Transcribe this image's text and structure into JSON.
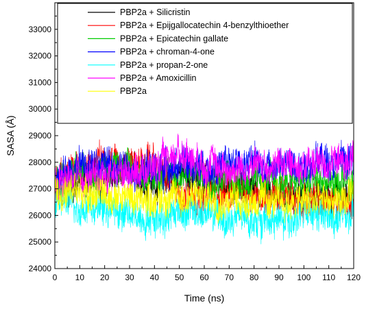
{
  "chart_data": {
    "type": "line",
    "title": "",
    "xlabel": "Time (ns)",
    "ylabel": "SASA (Å)",
    "xlim": [
      0,
      120
    ],
    "ylim": [
      24000,
      34000
    ],
    "xticks": [
      0,
      10,
      20,
      30,
      40,
      50,
      60,
      70,
      80,
      90,
      100,
      110,
      120
    ],
    "yticks": [
      24000,
      25000,
      26000,
      27000,
      28000,
      29000,
      30000,
      31000,
      32000,
      33000
    ],
    "grid": false,
    "legend_position": "top-right",
    "series": [
      {
        "name": "PBP2a + Silicristin",
        "color": "#000000",
        "x": [
          0,
          10,
          20,
          30,
          40,
          50,
          60,
          70,
          80,
          90,
          100,
          110,
          120
        ],
        "y": [
          26600,
          27300,
          27400,
          27600,
          27200,
          27500,
          27300,
          27100,
          27000,
          26900,
          26700,
          26600,
          26500
        ]
      },
      {
        "name": "PBP2a + Epijgallocatechin 4-benzylthioether",
        "color": "#ff0000",
        "x": [
          0,
          10,
          20,
          30,
          40,
          50,
          60,
          70,
          80,
          90,
          100,
          110,
          120
        ],
        "y": [
          27200,
          27700,
          28100,
          28000,
          27900,
          26800,
          26700,
          26900,
          26800,
          26700,
          26600,
          26500,
          26500
        ]
      },
      {
        "name": "PBP2a + Epicatechin gallate",
        "color": "#00cc00",
        "x": [
          0,
          10,
          20,
          30,
          40,
          50,
          60,
          70,
          80,
          90,
          100,
          110,
          120
        ],
        "y": [
          27300,
          27600,
          27800,
          27700,
          27500,
          27600,
          27500,
          27400,
          27300,
          27300,
          27200,
          27200,
          27100
        ]
      },
      {
        "name": "PBP2a + chroman-4-one",
        "color": "#0000ff",
        "x": [
          0,
          10,
          20,
          30,
          40,
          50,
          60,
          70,
          80,
          90,
          100,
          110,
          120
        ],
        "y": [
          27500,
          27900,
          27900,
          27800,
          27700,
          27900,
          27800,
          27900,
          28000,
          27900,
          28000,
          28100,
          28000
        ]
      },
      {
        "name": "PBP2a + propan-2-one",
        "color": "#00ffff",
        "x": [
          0,
          10,
          20,
          30,
          40,
          50,
          60,
          70,
          80,
          90,
          100,
          110,
          120
        ],
        "y": [
          26600,
          26400,
          26300,
          26000,
          25900,
          26200,
          26100,
          25800,
          25900,
          25800,
          26000,
          25900,
          25900
        ]
      },
      {
        "name": "PBP2a + Amoxicillin",
        "color": "#ff00ff",
        "x": [
          0,
          10,
          20,
          30,
          40,
          50,
          60,
          70,
          80,
          90,
          100,
          110,
          120
        ],
        "y": [
          27200,
          27400,
          27500,
          27700,
          27800,
          28400,
          28000,
          27700,
          27800,
          27900,
          27900,
          28000,
          28000
        ]
      },
      {
        "name": "PBP2a",
        "color": "#ffff00",
        "x": [
          0,
          10,
          20,
          30,
          40,
          50,
          60,
          70,
          80,
          90,
          100,
          110,
          120
        ],
        "y": [
          26900,
          26900,
          26800,
          26700,
          26600,
          26700,
          26700,
          26600,
          26600,
          26500,
          26500,
          26500,
          26600
        ]
      }
    ]
  }
}
